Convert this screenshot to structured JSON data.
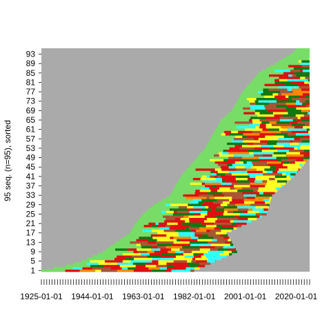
{
  "chart_data": {
    "type": "heatmap",
    "title": "",
    "xlabel": "",
    "ylabel": "95 seq. (n=95), sorted",
    "n_sequences": 95,
    "x_start_year": 1925,
    "x_end_year": 2025,
    "x_tick_labels": [
      "1925-01-01",
      "1944-01-01",
      "1963-01-01",
      "1982-01-01",
      "2001-01-01",
      "2020-01-01"
    ],
    "x_tick_years": [
      1925,
      1944,
      1963,
      1982,
      2001,
      2020
    ],
    "y_tick_labels": [
      "1",
      "5",
      "9",
      "13",
      "17",
      "21",
      "25",
      "29",
      "33",
      "37",
      "41",
      "45",
      "49",
      "53",
      "57",
      "61",
      "65",
      "69",
      "73",
      "77",
      "81",
      "85",
      "89",
      "93"
    ],
    "background_color": "#aaaaaa",
    "states": [
      {
        "color": "#77dd66"
      },
      {
        "color": "#117711"
      },
      {
        "color": "#dd1111"
      },
      {
        "color": "#ffff22"
      },
      {
        "color": "#33ffff"
      },
      {
        "color": "#aa5533"
      },
      {
        "color": "#ff8800"
      }
    ],
    "entry_boundary": [
      [
        1,
        1925
      ],
      [
        3,
        1934
      ],
      [
        5,
        1940
      ],
      [
        9,
        1948
      ],
      [
        13,
        1953
      ],
      [
        17,
        1958
      ],
      [
        21,
        1960
      ],
      [
        25,
        1963
      ],
      [
        29,
        1967
      ],
      [
        33,
        1973
      ],
      [
        37,
        1975
      ],
      [
        41,
        1977
      ],
      [
        45,
        1980
      ],
      [
        49,
        1983
      ],
      [
        53,
        1986
      ],
      [
        57,
        1988
      ],
      [
        61,
        1990
      ],
      [
        65,
        1992
      ],
      [
        69,
        1996
      ],
      [
        73,
        1998
      ],
      [
        77,
        2000
      ],
      [
        81,
        2003
      ],
      [
        85,
        2006
      ],
      [
        89,
        2012
      ],
      [
        93,
        2018
      ],
      [
        95,
        2020
      ]
    ],
    "exit_boundary": [
      [
        1,
        1982
      ],
      [
        9,
        1998
      ],
      [
        17,
        1994
      ],
      [
        25,
        2009
      ],
      [
        33,
        2011
      ],
      [
        41,
        2019
      ],
      [
        49,
        2025
      ],
      [
        95,
        2025
      ]
    ]
  }
}
